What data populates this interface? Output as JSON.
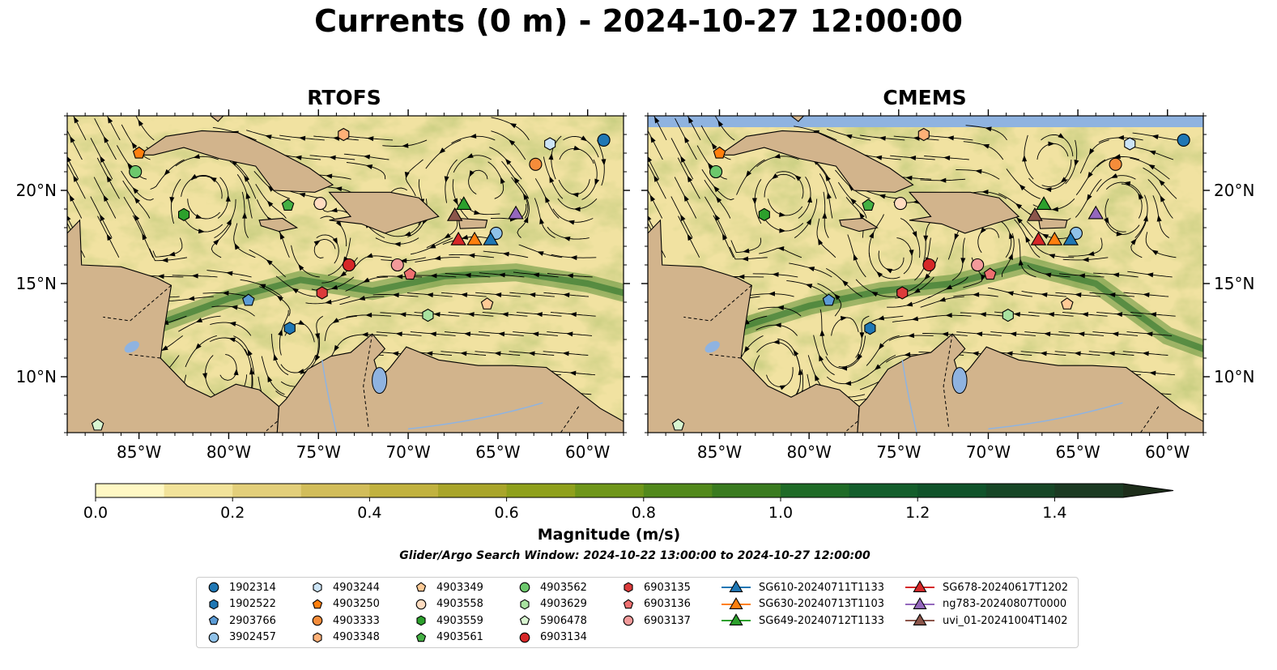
{
  "title": "Currents (0 m) - 2024-10-27 12:00:00",
  "panels": [
    "RTOFS",
    "CMEMS"
  ],
  "lat_ticks": [
    "10°N",
    "15°N",
    "20°N"
  ],
  "lon_ticks": [
    "85°W",
    "80°W",
    "75°W",
    "70°W",
    "65°W",
    "60°W"
  ],
  "colorbar": {
    "label": "Magnitude (m/s)",
    "ticks": [
      "0.0",
      "0.2",
      "0.4",
      "0.6",
      "0.8",
      "1.0",
      "1.2",
      "1.4"
    ],
    "colors": [
      "#fff8c4",
      "#f2e39a",
      "#e3cf7a",
      "#d2bd5a",
      "#c1b23f",
      "#a9a52a",
      "#8fa01c",
      "#6f961a",
      "#52891c",
      "#3a7b20",
      "#1f6b27",
      "#145e2c",
      "#10532a",
      "#164626",
      "#1b3a22",
      "#1d2d1a"
    ]
  },
  "search_window": "Glider/Argo Search Window: 2024-10-22 13:00:00 to 2024-10-27 12:00:00",
  "legend": [
    {
      "label": "1902314",
      "marker": "circle",
      "color": "#1f77b4"
    },
    {
      "label": "1902522",
      "marker": "hexagon",
      "color": "#1f77b4"
    },
    {
      "label": "2903766",
      "marker": "pentagon",
      "color": "#5b9bd5"
    },
    {
      "label": "3902457",
      "marker": "circle",
      "color": "#8fc1e8"
    },
    {
      "label": "4903244",
      "marker": "hexagon",
      "color": "#cce4f6"
    },
    {
      "label": "4903250",
      "marker": "pentagon",
      "color": "#ff7f0e"
    },
    {
      "label": "4903333",
      "marker": "circle",
      "color": "#f58c3a"
    },
    {
      "label": "4903348",
      "marker": "hexagon",
      "color": "#ffb077"
    },
    {
      "label": "4903349",
      "marker": "pentagon",
      "color": "#ffca96"
    },
    {
      "label": "4903558",
      "marker": "circle",
      "color": "#ffdcc0"
    },
    {
      "label": "4903559",
      "marker": "hexagon",
      "color": "#2ca02c"
    },
    {
      "label": "4903561",
      "marker": "pentagon",
      "color": "#44b044"
    },
    {
      "label": "4903562",
      "marker": "circle",
      "color": "#6cc86c"
    },
    {
      "label": "4903629",
      "marker": "hexagon",
      "color": "#a8e2a0"
    },
    {
      "label": "5906478",
      "marker": "pentagon",
      "color": "#d8f5d0"
    },
    {
      "label": "6903134",
      "marker": "circle",
      "color": "#d62728"
    },
    {
      "label": "6903135",
      "marker": "hexagon",
      "color": "#dc3b3b"
    },
    {
      "label": "6903136",
      "marker": "pentagon",
      "color": "#ee7070"
    },
    {
      "label": "6903137",
      "marker": "circle",
      "color": "#f29a9a"
    },
    {
      "label": "SG610-20240711T1133",
      "marker": "triangle",
      "color": "#1f77b4"
    },
    {
      "label": "SG630-20240713T1103",
      "marker": "triangle",
      "color": "#ff7f0e"
    },
    {
      "label": "SG649-20240712T1133",
      "marker": "triangle",
      "color": "#2ca02c"
    },
    {
      "label": "SG678-20240617T1202",
      "marker": "triangle",
      "color": "#d62728"
    },
    {
      "label": "ng783-20240807T0000",
      "marker": "triangle",
      "color": "#9467bd"
    },
    {
      "label": "uvi_01-20241004T1402",
      "marker": "triangle",
      "color": "#8c564b"
    }
  ],
  "chart_data": {
    "type": "scatter",
    "title": "Currents (0 m) - 2024-10-27 12:00:00",
    "panels": [
      "RTOFS",
      "CMEMS"
    ],
    "xlim": [
      -89,
      -58
    ],
    "ylim": [
      7,
      24
    ],
    "colorbar_range": [
      0,
      1.5
    ],
    "series": [
      {
        "name": "1902314",
        "lon": -59.1,
        "lat": 22.7
      },
      {
        "name": "1902522",
        "lon": -76.6,
        "lat": 12.6
      },
      {
        "name": "2903766",
        "lon": -78.9,
        "lat": 14.1
      },
      {
        "name": "3902457",
        "lon": -65.1,
        "lat": 17.7
      },
      {
        "name": "4903244",
        "lon": -62.1,
        "lat": 22.5
      },
      {
        "name": "4903250",
        "lon": -85.0,
        "lat": 22.0
      },
      {
        "name": "4903333",
        "lon": -62.9,
        "lat": 21.4
      },
      {
        "name": "4903348",
        "lon": -73.6,
        "lat": 23.0
      },
      {
        "name": "4903349",
        "lon": -65.6,
        "lat": 13.9
      },
      {
        "name": "4903558",
        "lon": -74.9,
        "lat": 19.3
      },
      {
        "name": "4903559",
        "lon": -82.5,
        "lat": 18.7
      },
      {
        "name": "4903561",
        "lon": -76.7,
        "lat": 19.2
      },
      {
        "name": "4903562",
        "lon": -85.2,
        "lat": 21.0
      },
      {
        "name": "4903629",
        "lon": -68.9,
        "lat": 13.3
      },
      {
        "name": "5906478",
        "lon": -87.3,
        "lat": 7.4
      },
      {
        "name": "6903134",
        "lon": -73.3,
        "lat": 16.0
      },
      {
        "name": "6903135",
        "lon": -74.8,
        "lat": 14.5
      },
      {
        "name": "6903136",
        "lon": -69.9,
        "lat": 15.5
      },
      {
        "name": "6903137",
        "lon": -70.6,
        "lat": 16.0
      },
      {
        "name": "SG610-20240711T1133",
        "lon": -65.4,
        "lat": 17.3
      },
      {
        "name": "SG630-20240713T1103",
        "lon": -66.3,
        "lat": 17.3
      },
      {
        "name": "SG649-20240712T1133",
        "lon": -66.9,
        "lat": 19.2
      },
      {
        "name": "SG678-20240617T1202",
        "lon": -67.2,
        "lat": 17.3
      },
      {
        "name": "ng783-20240807T0000",
        "lon": -64.0,
        "lat": 18.7
      },
      {
        "name": "uvi_01-20241004T1402",
        "lon": -67.4,
        "lat": 18.6
      }
    ]
  }
}
